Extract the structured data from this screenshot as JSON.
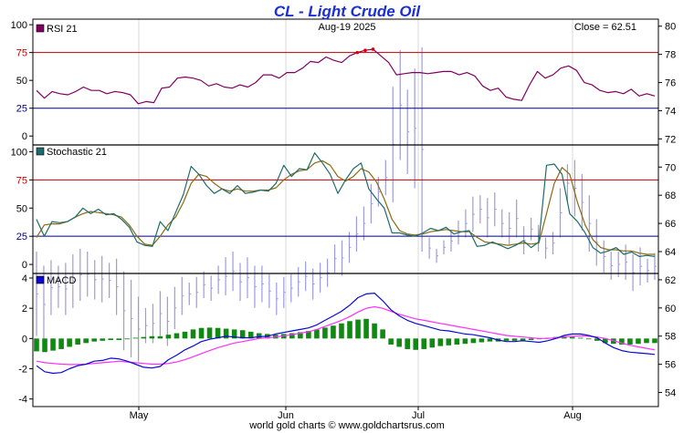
{
  "title": "CL  -  Light Crude Oil",
  "date_label": "Aug-19  2025",
  "close_label": "Close = 62.51",
  "footer": "world gold charts © www.goldchartsrus.com",
  "colors": {
    "price_bars": "#9c9ae0",
    "rsi": "#800060",
    "stoch_fast": "#1e6b6b",
    "stoch_slow": "#8a6a10",
    "macd": "#0a0ad0",
    "signal": "#ff30ff",
    "histogram": "#118811",
    "level_red": "#c00000",
    "level_blue": "#000080"
  },
  "chart_data": [
    {
      "type": "ohlc",
      "name": "price",
      "right_axis_ticks": [
        80,
        78,
        76,
        74,
        72,
        70,
        68,
        66,
        64,
        62,
        60,
        58,
        56,
        54
      ],
      "ylim": [
        53,
        80.5
      ],
      "x_labels": [
        "May",
        "Jun",
        "Jul",
        "Aug"
      ],
      "close": 62.51,
      "highs": [
        64.0,
        63.0,
        63.4,
        63.0,
        63.2,
        63.8,
        64.2,
        64.0,
        63.4,
        63.7,
        63.2,
        63.5,
        62.6,
        62.0,
        60.8,
        60.0,
        60.3,
        61.2,
        60.8,
        61.5,
        62.2,
        61.8,
        62.2,
        62.6,
        62.3,
        63.0,
        63.6,
        64.0,
        63.2,
        63.6,
        63.0,
        63.0,
        62.4,
        61.8,
        62.2,
        62.4,
        62.9,
        63.3,
        62.8,
        63.2,
        63.5,
        64.5,
        64.8,
        65.4,
        66.5,
        67.2,
        68.8,
        69.3,
        70.5,
        75.7,
        78.3,
        75.5,
        77.0,
        78.5,
        65.0,
        64.2,
        64.8,
        65.5,
        66.2,
        67.0,
        67.9,
        68.0,
        67.8,
        68.2,
        67.0,
        66.8,
        67.7,
        65.8,
        66.4,
        65.9,
        65.0,
        65.4,
        68.5,
        70.2,
        70.5,
        69.5,
        68.0,
        66.3,
        64.8,
        64.0,
        64.0,
        64.5,
        63.8,
        64.3,
        63.5,
        63.9
      ],
      "lows": [
        58.0,
        57.5,
        59.5,
        60.0,
        59.5,
        60.0,
        60.5,
        60.8,
        60.6,
        60.4,
        60.7,
        59.5,
        57.0,
        56.5,
        56.2,
        57.5,
        57.5,
        58.0,
        57.3,
        58.5,
        59.5,
        60.2,
        60.0,
        60.7,
        60.5,
        61.0,
        60.9,
        61.2,
        60.5,
        60.7,
        60.0,
        60.4,
        60.0,
        59.5,
        60.0,
        60.4,
        60.8,
        61.2,
        60.6,
        61.1,
        61.5,
        62.5,
        62.3,
        63.2,
        64.0,
        64.8,
        66.0,
        67.2,
        68.0,
        67.5,
        70.5,
        69.5,
        68.5,
        64.0,
        63.5,
        63.2,
        63.8,
        64.0,
        64.5,
        65.0,
        65.4,
        66.0,
        65.0,
        65.8,
        65.0,
        64.5,
        65.0,
        63.8,
        64.8,
        64.0,
        63.5,
        63.8,
        65.0,
        67.5,
        66.5,
        65.5,
        64.0,
        63.0,
        62.5,
        62.0,
        62.2,
        62.0,
        61.2,
        61.6,
        61.8,
        62.0
      ]
    },
    {
      "type": "line",
      "name": "RSI 21",
      "ylim": [
        -8,
        105
      ],
      "y_ticks": [
        100,
        75,
        50,
        25,
        0
      ],
      "levels": [
        75,
        25
      ],
      "values": [
        41,
        34,
        40,
        38,
        37,
        40,
        44,
        41,
        41,
        38,
        40,
        39,
        37,
        29,
        31,
        30,
        43,
        44,
        52,
        53,
        52,
        50,
        45,
        47,
        44,
        43,
        46,
        44,
        48,
        55,
        55,
        52,
        57,
        57,
        61,
        67,
        66,
        71,
        68,
        66,
        72,
        75,
        77,
        78,
        72,
        66,
        55,
        56,
        57,
        57,
        56,
        57,
        58,
        58,
        55,
        57,
        54,
        45,
        41,
        43,
        35,
        33,
        32,
        46,
        58,
        52,
        55,
        61,
        63,
        59,
        48,
        46,
        41,
        39,
        40,
        38,
        42,
        36,
        38,
        36
      ]
    },
    {
      "type": "line",
      "name": "Stochastic 21",
      "ylim": [
        -8,
        106
      ],
      "y_ticks": [
        100,
        75,
        50,
        25,
        0
      ],
      "levels": [
        75,
        25
      ],
      "series": [
        {
          "role": "fast",
          "values": [
            40,
            25,
            38,
            37,
            38,
            42,
            50,
            45,
            49,
            44,
            45,
            40,
            33,
            20,
            17,
            16,
            38,
            30,
            46,
            62,
            87,
            80,
            70,
            63,
            67,
            63,
            70,
            63,
            64,
            66,
            65,
            72,
            88,
            78,
            85,
            84,
            99,
            90,
            80,
            63,
            75,
            85,
            90,
            67,
            58,
            50,
            28,
            28,
            26,
            25,
            28,
            32,
            30,
            33,
            27,
            29,
            30,
            16,
            17,
            20,
            17,
            14,
            17,
            21,
            15,
            20,
            88,
            89,
            80,
            45,
            38,
            28,
            15,
            10,
            12,
            15,
            9,
            11,
            7,
            8,
            7
          ]
        },
        {
          "role": "slow",
          "values": [
            24,
            35,
            36,
            36,
            38,
            42,
            45,
            47,
            46,
            45,
            44,
            42,
            35,
            25,
            18,
            17,
            25,
            35,
            42,
            55,
            72,
            80,
            78,
            72,
            67,
            65,
            67,
            65,
            65,
            66,
            66,
            68,
            75,
            80,
            83,
            84,
            90,
            92,
            88,
            78,
            74,
            78,
            85,
            82,
            73,
            58,
            40,
            30,
            27,
            26,
            27,
            29,
            30,
            31,
            30,
            29,
            29,
            24,
            20,
            19,
            18,
            17,
            18,
            19,
            18,
            19,
            45,
            72,
            86,
            80,
            55,
            35,
            22,
            15,
            13,
            13,
            12,
            12,
            10,
            9,
            9
          ]
        }
      ]
    },
    {
      "type": "line+bar",
      "name": "MACD",
      "ylim": [
        -4.5,
        4.3
      ],
      "y_ticks": [
        4,
        2,
        0,
        -2,
        -4
      ],
      "series": [
        {
          "role": "macd",
          "values": [
            -1.8,
            -2.2,
            -2.3,
            -2.25,
            -2.0,
            -1.8,
            -1.7,
            -1.5,
            -1.45,
            -1.3,
            -1.35,
            -1.5,
            -1.7,
            -1.9,
            -1.95,
            -1.85,
            -1.4,
            -1.1,
            -0.75,
            -0.5,
            -0.2,
            -0.05,
            0.05,
            0.15,
            0.1,
            0.05,
            0.05,
            0.12,
            0.15,
            0.3,
            0.4,
            0.5,
            0.6,
            0.7,
            0.9,
            1.2,
            1.5,
            1.8,
            2.2,
            2.7,
            2.95,
            3.0,
            2.5,
            1.9,
            1.5,
            1.2,
            1.0,
            0.85,
            0.7,
            0.55,
            0.5,
            0.4,
            0.3,
            0.25,
            0.15,
            0.05,
            -0.1,
            -0.2,
            -0.2,
            -0.15,
            -0.2,
            -0.25,
            -0.15,
            0.0,
            0.2,
            0.3,
            0.3,
            0.2,
            0.05,
            -0.3,
            -0.6,
            -0.8,
            -0.9,
            -0.95,
            -1.0,
            -1.05
          ]
        },
        {
          "role": "signal",
          "values": [
            -1.5,
            -1.6,
            -1.65,
            -1.7,
            -1.72,
            -1.72,
            -1.7,
            -1.65,
            -1.6,
            -1.55,
            -1.5,
            -1.55,
            -1.6,
            -1.65,
            -1.7,
            -1.7,
            -1.65,
            -1.55,
            -1.4,
            -1.2,
            -1.0,
            -0.8,
            -0.6,
            -0.45,
            -0.3,
            -0.2,
            -0.1,
            0.0,
            0.05,
            0.1,
            0.18,
            0.25,
            0.35,
            0.45,
            0.6,
            0.8,
            1.0,
            1.2,
            1.45,
            1.75,
            2.0,
            2.1,
            2.0,
            1.8,
            1.6,
            1.45,
            1.3,
            1.2,
            1.1,
            1.0,
            0.9,
            0.8,
            0.7,
            0.6,
            0.5,
            0.4,
            0.3,
            0.2,
            0.15,
            0.1,
            0.05,
            0.0,
            0.0,
            0.05,
            0.1,
            0.15,
            0.18,
            0.15,
            0.1,
            0.0,
            -0.15,
            -0.3,
            -0.45,
            -0.55,
            -0.65,
            -0.75
          ]
        },
        {
          "role": "histogram",
          "values": [
            -0.85,
            -0.9,
            -0.8,
            -0.7,
            -0.55,
            -0.4,
            -0.3,
            -0.2,
            -0.15,
            -0.1,
            -0.1,
            -0.05,
            0.05,
            0.1,
            0.15,
            0.15,
            0.25,
            0.35,
            0.45,
            0.6,
            0.7,
            0.72,
            0.7,
            0.65,
            0.6,
            0.55,
            0.45,
            0.35,
            0.3,
            0.25,
            0.3,
            0.35,
            0.42,
            0.5,
            0.6,
            0.72,
            0.85,
            1.0,
            1.15,
            1.25,
            1.3,
            1.0,
            0.6,
            -0.4,
            -0.55,
            -0.7,
            -0.75,
            -0.7,
            -0.6,
            -0.5,
            -0.45,
            -0.4,
            -0.35,
            -0.3,
            -0.25,
            -0.2,
            -0.2,
            -0.15,
            -0.15,
            -0.15,
            -0.1,
            -0.05,
            0.05,
            0.1,
            0.15,
            0.1,
            0.05,
            -0.05,
            -0.15,
            -0.3,
            -0.35,
            -0.4,
            -0.4,
            -0.35,
            -0.3,
            -0.3
          ]
        }
      ]
    }
  ]
}
